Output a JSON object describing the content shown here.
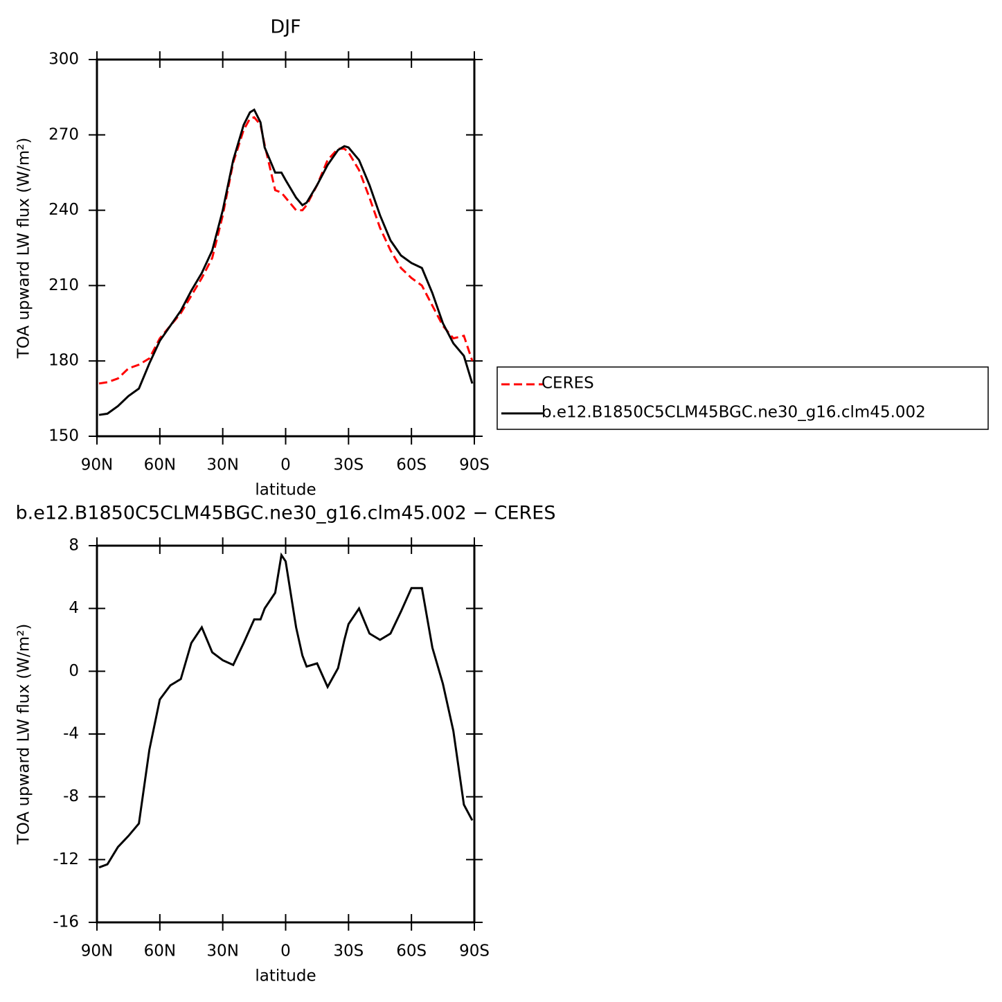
{
  "chart_data": [
    {
      "type": "line",
      "title": "DJF",
      "x_label": "latitude",
      "y_label": "TOA upward LW flux (W/m²)",
      "x": [
        89,
        85,
        80,
        75,
        70,
        65,
        60,
        55,
        50,
        45,
        40,
        35,
        30,
        25,
        20,
        17,
        15,
        12,
        10,
        5,
        2,
        0,
        -5,
        -8,
        -10,
        -15,
        -20,
        -25,
        -28,
        -30,
        -35,
        -40,
        -45,
        -50,
        -55,
        -60,
        -65,
        -70,
        -75,
        -80,
        -85,
        -89
      ],
      "series": [
        {
          "name": "CERES",
          "color": "#ff0000",
          "style": "dashed",
          "values": [
            171,
            171.5,
            173,
            177,
            178.5,
            181,
            189,
            194,
            199,
            206,
            213,
            221,
            238,
            259,
            272,
            276.5,
            277,
            274,
            266,
            248,
            247,
            245,
            240,
            240,
            242,
            250,
            260,
            264.5,
            264.5,
            263,
            256,
            245,
            233,
            224,
            217,
            213,
            210,
            202,
            194,
            189,
            190,
            180
          ]
        },
        {
          "name": "b.e12.B1850C5CLM45BGC.ne30_g16.clm45.002",
          "color": "#000000",
          "style": "solid",
          "values": [
            158.5,
            159,
            162,
            166,
            169,
            179,
            188,
            194,
            200,
            208,
            215,
            224,
            240,
            260,
            274,
            279,
            280,
            275,
            265,
            255,
            255,
            252,
            245,
            242,
            243,
            250,
            258,
            264,
            265.5,
            265,
            260,
            250,
            238,
            228,
            222,
            219,
            217,
            207,
            195,
            187,
            182,
            171
          ]
        }
      ],
      "xlim": [
        90,
        -90
      ],
      "xticks": [
        {
          "value": 90,
          "label": "90N"
        },
        {
          "value": 60,
          "label": "60N"
        },
        {
          "value": 30,
          "label": "30N"
        },
        0,
        {
          "value": -30,
          "label": "30S"
        },
        {
          "value": -60,
          "label": "60S"
        },
        {
          "value": -90,
          "label": "90S"
        }
      ],
      "ylim": [
        150,
        300
      ],
      "yticks": [
        150,
        180,
        210,
        240,
        270,
        300
      ],
      "legend": "right"
    },
    {
      "type": "line",
      "title": "b.e12.B1850C5CLM45BGC.ne30_g16.clm45.002 − CERES",
      "x_label": "latitude",
      "y_label": "TOA upward LW flux (W/m²)",
      "x": [
        89,
        85,
        80,
        75,
        70,
        65,
        60,
        55,
        50,
        45,
        40,
        35,
        30,
        25,
        20,
        15,
        12,
        10,
        5,
        2,
        0,
        -5,
        -8,
        -10,
        -15,
        -20,
        -25,
        -28,
        -30,
        -35,
        -40,
        -45,
        -50,
        -55,
        -60,
        -65,
        -70,
        -75,
        -80,
        -85,
        -89
      ],
      "series": [
        {
          "name": null,
          "color": "#000000",
          "style": "solid",
          "values": [
            -12.5,
            -12.3,
            -11.2,
            -10.5,
            -9.7,
            -5,
            -1.8,
            -0.9,
            -0.5,
            1.8,
            2.8,
            1.2,
            0.7,
            0.4,
            1.8,
            3.3,
            3.3,
            4,
            5,
            7.4,
            7.0,
            2.8,
            1.0,
            0.3,
            0.5,
            -1.0,
            0.2,
            2,
            3,
            4,
            2.4,
            2.0,
            2.4,
            3.8,
            5.3,
            5.3,
            1.5,
            -0.8,
            -3.8,
            -8.5,
            -9.5
          ]
        }
      ],
      "xlim": [
        90,
        -90
      ],
      "xticks": [
        {
          "value": 90,
          "label": "90N"
        },
        {
          "value": 60,
          "label": "60N"
        },
        {
          "value": 30,
          "label": "30N"
        },
        0,
        {
          "value": -30,
          "label": "30S"
        },
        {
          "value": -60,
          "label": "60S"
        },
        {
          "value": -90,
          "label": "90S"
        }
      ],
      "ylim": [
        -16,
        8
      ],
      "yticks": [
        -16,
        -12,
        -8,
        -4,
        0,
        4,
        8
      ]
    }
  ]
}
